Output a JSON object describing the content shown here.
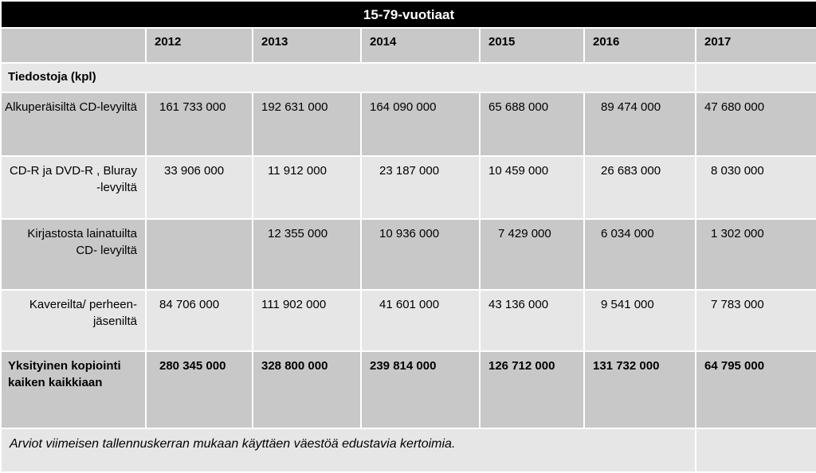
{
  "title": "15-79-vuotiaat",
  "years": [
    "2012",
    "2013",
    "2014",
    "2015",
    "2016",
    "2017"
  ],
  "section_label": "Tiedostoja (kpl)",
  "rows": [
    {
      "label": "Alkuperäisiltä CD-levyiltä",
      "values": [
        "161 733 000",
        "192 631 000",
        "164 090 000",
        "65 688 000",
        "89 474 000",
        "47 680 000"
      ]
    },
    {
      "label": "CD-R ja DVD-R , Bluray -levyiltä",
      "values": [
        "33 906 000",
        "11 912 000",
        "23 187 000",
        "10 459 000",
        "26 683 000",
        "8 030 000"
      ]
    },
    {
      "label": "Kirjastosta lainatuilta CD- levyiltä",
      "values": [
        "",
        "12 355 000",
        "10 936 000",
        "7 429 000",
        "6 034 000",
        "1 302 000"
      ]
    },
    {
      "label": "Kavereilta/ perheen-jäseniltä",
      "values": [
        "84 706 000",
        "111 902 000",
        "41 601 000",
        "43 136 000",
        "9 541 000",
        "7 783 000"
      ]
    },
    {
      "label": "Yksityinen kopiointi kaiken kaikkiaan",
      "values": [
        "280 345 000",
        "328 800 000",
        "239 814 000",
        "126 712 000",
        "131 732 000",
        "64 795 000"
      ]
    }
  ],
  "footnote": "Arviot viimeisen tallennuskerran mukaan käyttäen väestöä edustavia kertoimia.",
  "colors": {
    "title_bg": "#000000",
    "dark_row": "#c8c8c8",
    "light_row": "#e6e6e6"
  }
}
